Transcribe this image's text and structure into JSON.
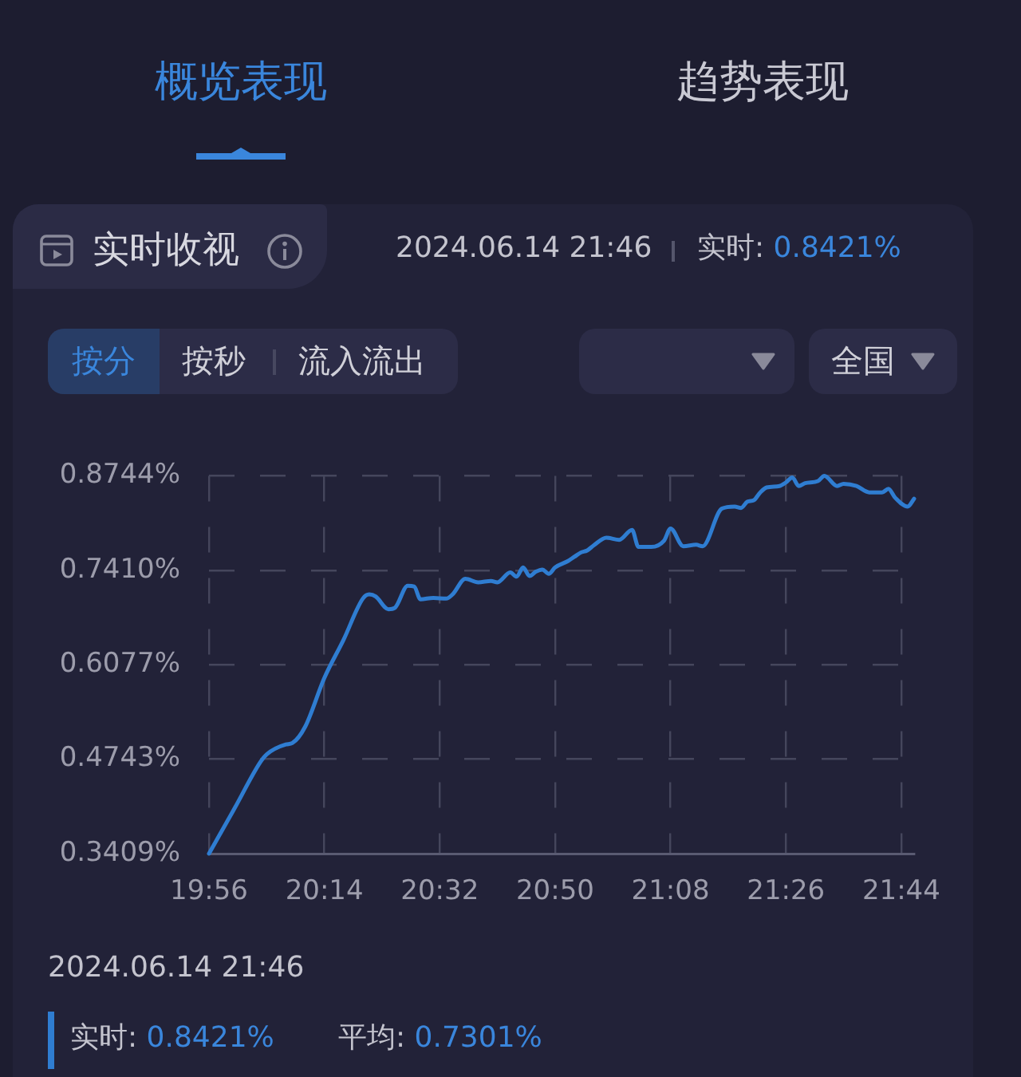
{
  "chart_data": {
    "type": "line",
    "title": "实时收视",
    "x": [
      19.9333,
      20.0,
      20.0667,
      20.0833,
      20.1333,
      20.15,
      20.1833,
      20.2333,
      20.2833,
      20.3333,
      20.35,
      20.3667,
      20.4,
      20.4167,
      20.45,
      20.4667,
      20.4833,
      20.5167,
      20.55,
      20.5667,
      20.6,
      20.6333,
      20.6667,
      20.6833,
      20.7167,
      20.7333,
      20.75,
      20.7667,
      20.7833,
      20.8,
      20.8167,
      20.8333,
      20.8667,
      20.8833,
      20.9,
      20.9167,
      20.9333,
      20.9667,
      21.0,
      21.0333,
      21.05,
      21.0833,
      21.1167,
      21.1333,
      21.1667,
      21.2,
      21.2167,
      21.2667,
      21.3,
      21.3167,
      21.3333,
      21.35,
      21.3667,
      21.3833,
      21.4167,
      21.4333,
      21.45,
      21.4667,
      21.4833,
      21.5167,
      21.5333,
      21.5667,
      21.5833,
      21.6167,
      21.65,
      21.6833,
      21.7,
      21.7167,
      21.75,
      21.7667
    ],
    "series": [
      {
        "color": "#2f7dd1",
        "values": [
          0.3409,
          0.405,
          0.47,
          0.481,
          0.495,
          0.497,
          0.52,
          0.589,
          0.643,
          0.701,
          0.707,
          0.704,
          0.686,
          0.688,
          0.719,
          0.718,
          0.7,
          0.702,
          0.701,
          0.707,
          0.729,
          0.724,
          0.726,
          0.724,
          0.738,
          0.732,
          0.745,
          0.733,
          0.739,
          0.742,
          0.736,
          0.745,
          0.754,
          0.76,
          0.766,
          0.769,
          0.776,
          0.787,
          0.784,
          0.798,
          0.774,
          0.774,
          0.783,
          0.8,
          0.775,
          0.777,
          0.775,
          0.828,
          0.831,
          0.829,
          0.838,
          0.84,
          0.851,
          0.858,
          0.86,
          0.865,
          0.872,
          0.86,
          0.864,
          0.867,
          0.8744,
          0.86,
          0.863,
          0.86,
          0.851,
          0.851,
          0.856,
          0.844,
          0.831,
          0.8421
        ]
      }
    ],
    "xlim": [
      19.9333,
      21.7667
    ],
    "xticks": [
      {
        "value": 19.9333,
        "label": "19:56"
      },
      {
        "value": 20.2333,
        "label": "20:14"
      },
      {
        "value": 20.5333,
        "label": "20:32"
      },
      {
        "value": 20.8333,
        "label": "20:50"
      },
      {
        "value": 21.1333,
        "label": "21:08"
      },
      {
        "value": 21.4333,
        "label": "21:26"
      },
      {
        "value": 21.7333,
        "label": "21:44"
      }
    ],
    "ylim": [
      0.3409,
      0.8744
    ],
    "yticks": [
      {
        "value": 0.3409,
        "label": "0.3409%"
      },
      {
        "value": 0.4743,
        "label": "0.4743%"
      },
      {
        "value": 0.6077,
        "label": "0.6077%"
      },
      {
        "value": 0.741,
        "label": "0.7410%"
      },
      {
        "value": 0.8744,
        "label": "0.8744%"
      }
    ],
    "grid": true,
    "annotations": [
      "概览表现",
      "趋势表现",
      "2024.06.14 21:46",
      "实时: 0.8421%",
      "按分",
      "按秒",
      "流入流出",
      "全国",
      "2024.06.14 21:46",
      "实时: 0.8421%",
      "平均: 0.7301%"
    ]
  }
}
